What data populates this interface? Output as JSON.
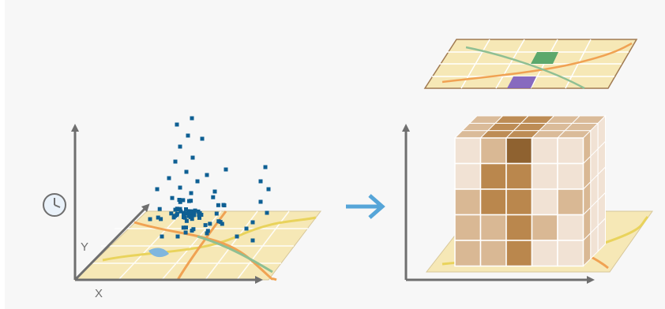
{
  "axes": {
    "x_label": "X",
    "y_label": "Y"
  },
  "icons": {
    "time": "clock-icon",
    "transition": "right-arrow-icon"
  },
  "colors": {
    "background": "#f7f7f7",
    "axis": "#6f6f6f",
    "map_base": "#f6e8b6",
    "road_orange": "#f0a253",
    "road_yellow": "#e9d35c",
    "road_green": "#8fbf93",
    "water": "#7fb6de",
    "points": "#0e5f93",
    "arrow": "#56a5d8",
    "cube_light": "#f1e2d4",
    "cube_mid": "#d9b894",
    "cube_dark": "#ba874d",
    "cube_darkest": "#8f6230",
    "highlight_green": "#5ca86c",
    "highlight_purple": "#7b5cc0"
  }
}
